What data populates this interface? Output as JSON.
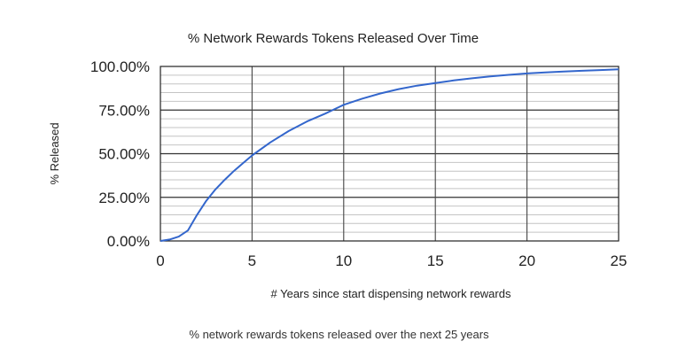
{
  "chart_data": {
    "type": "line",
    "title": "% Network Rewards Tokens Released Over Time",
    "xlabel": "# Years since start dispensing network rewards",
    "ylabel": "% Released",
    "xlim": [
      0,
      25
    ],
    "ylim": [
      0,
      100
    ],
    "x_ticks": [
      "0",
      "5",
      "10",
      "15",
      "20",
      "25"
    ],
    "y_ticks": [
      "0.00%",
      "25.00%",
      "50.00%",
      "75.00%",
      "100.00%"
    ],
    "grid": true,
    "legend": "none",
    "series": [
      {
        "color": "#3366cc",
        "points": [
          [
            0,
            0
          ],
          [
            0.5,
            0.8
          ],
          [
            1,
            2.5
          ],
          [
            1.5,
            6
          ],
          [
            2,
            15
          ],
          [
            2.5,
            23
          ],
          [
            3,
            29.5
          ],
          [
            3.5,
            35
          ],
          [
            4,
            40
          ],
          [
            4.5,
            44.5
          ],
          [
            5,
            49
          ],
          [
            6,
            56.5
          ],
          [
            7,
            63
          ],
          [
            8,
            68.5
          ],
          [
            9,
            73
          ],
          [
            10,
            78
          ],
          [
            11,
            81.5
          ],
          [
            12,
            84.5
          ],
          [
            13,
            87
          ],
          [
            14,
            89
          ],
          [
            15,
            90.5
          ],
          [
            16,
            92
          ],
          [
            17,
            93.2
          ],
          [
            18,
            94.3
          ],
          [
            19,
            95.2
          ],
          [
            20,
            96
          ],
          [
            21,
            96.6
          ],
          [
            22,
            97.1
          ],
          [
            23,
            97.5
          ],
          [
            24,
            97.9
          ],
          [
            25,
            98.3
          ]
        ]
      }
    ]
  },
  "caption": "% network rewards tokens released over the next 25 years"
}
